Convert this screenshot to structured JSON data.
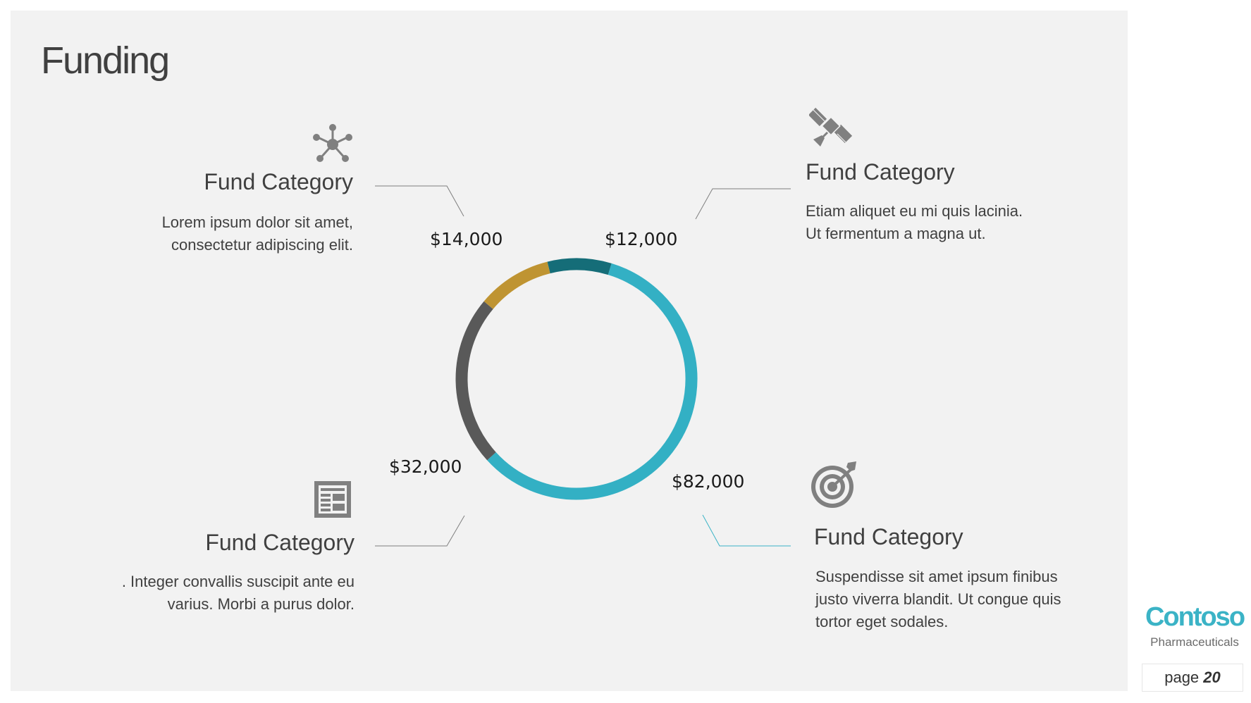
{
  "slide": {
    "title": "Funding"
  },
  "chart_data": {
    "type": "pie",
    "style": "donut",
    "values": [
      12000,
      82000,
      32000,
      14000
    ],
    "colors": [
      "#156d78",
      "#33b0c4",
      "#595959",
      "#bf9432"
    ],
    "labels": [
      "$12,000",
      "$82,000",
      "$32,000",
      "$14,000"
    ]
  },
  "categories": [
    {
      "title": "Fund Category",
      "description_lines": [
        "Lorem ipsum dolor sit amet,",
        "consectetur adipiscing elit."
      ],
      "icon": "network-icon",
      "color": "#808080"
    },
    {
      "title": "Fund Category",
      "description_lines": [
        "Etiam aliquet eu mi quis lacinia.",
        "Ut fermentum a magna ut."
      ],
      "icon": "satellite-icon",
      "color": "#808080"
    },
    {
      "title": "Fund Category",
      "description_lines": [
        ". Integer convallis suscipit ante eu",
        "varius. Morbi a purus dolor."
      ],
      "icon": "newspaper-icon",
      "color": "#808080"
    },
    {
      "title": "Fund Category",
      "description_lines": [
        "Suspendisse sit amet ipsum finibus",
        "justo viverra blandit. Ut congue quis",
        "tortor eget sodales."
      ],
      "icon": "target-icon",
      "color": "#808080"
    }
  ],
  "brand": {
    "name": "Contoso",
    "subtitle": "Pharmaceuticals",
    "color": "#3bb3c6"
  },
  "footer": {
    "page_label": "page",
    "page_number": "20"
  }
}
